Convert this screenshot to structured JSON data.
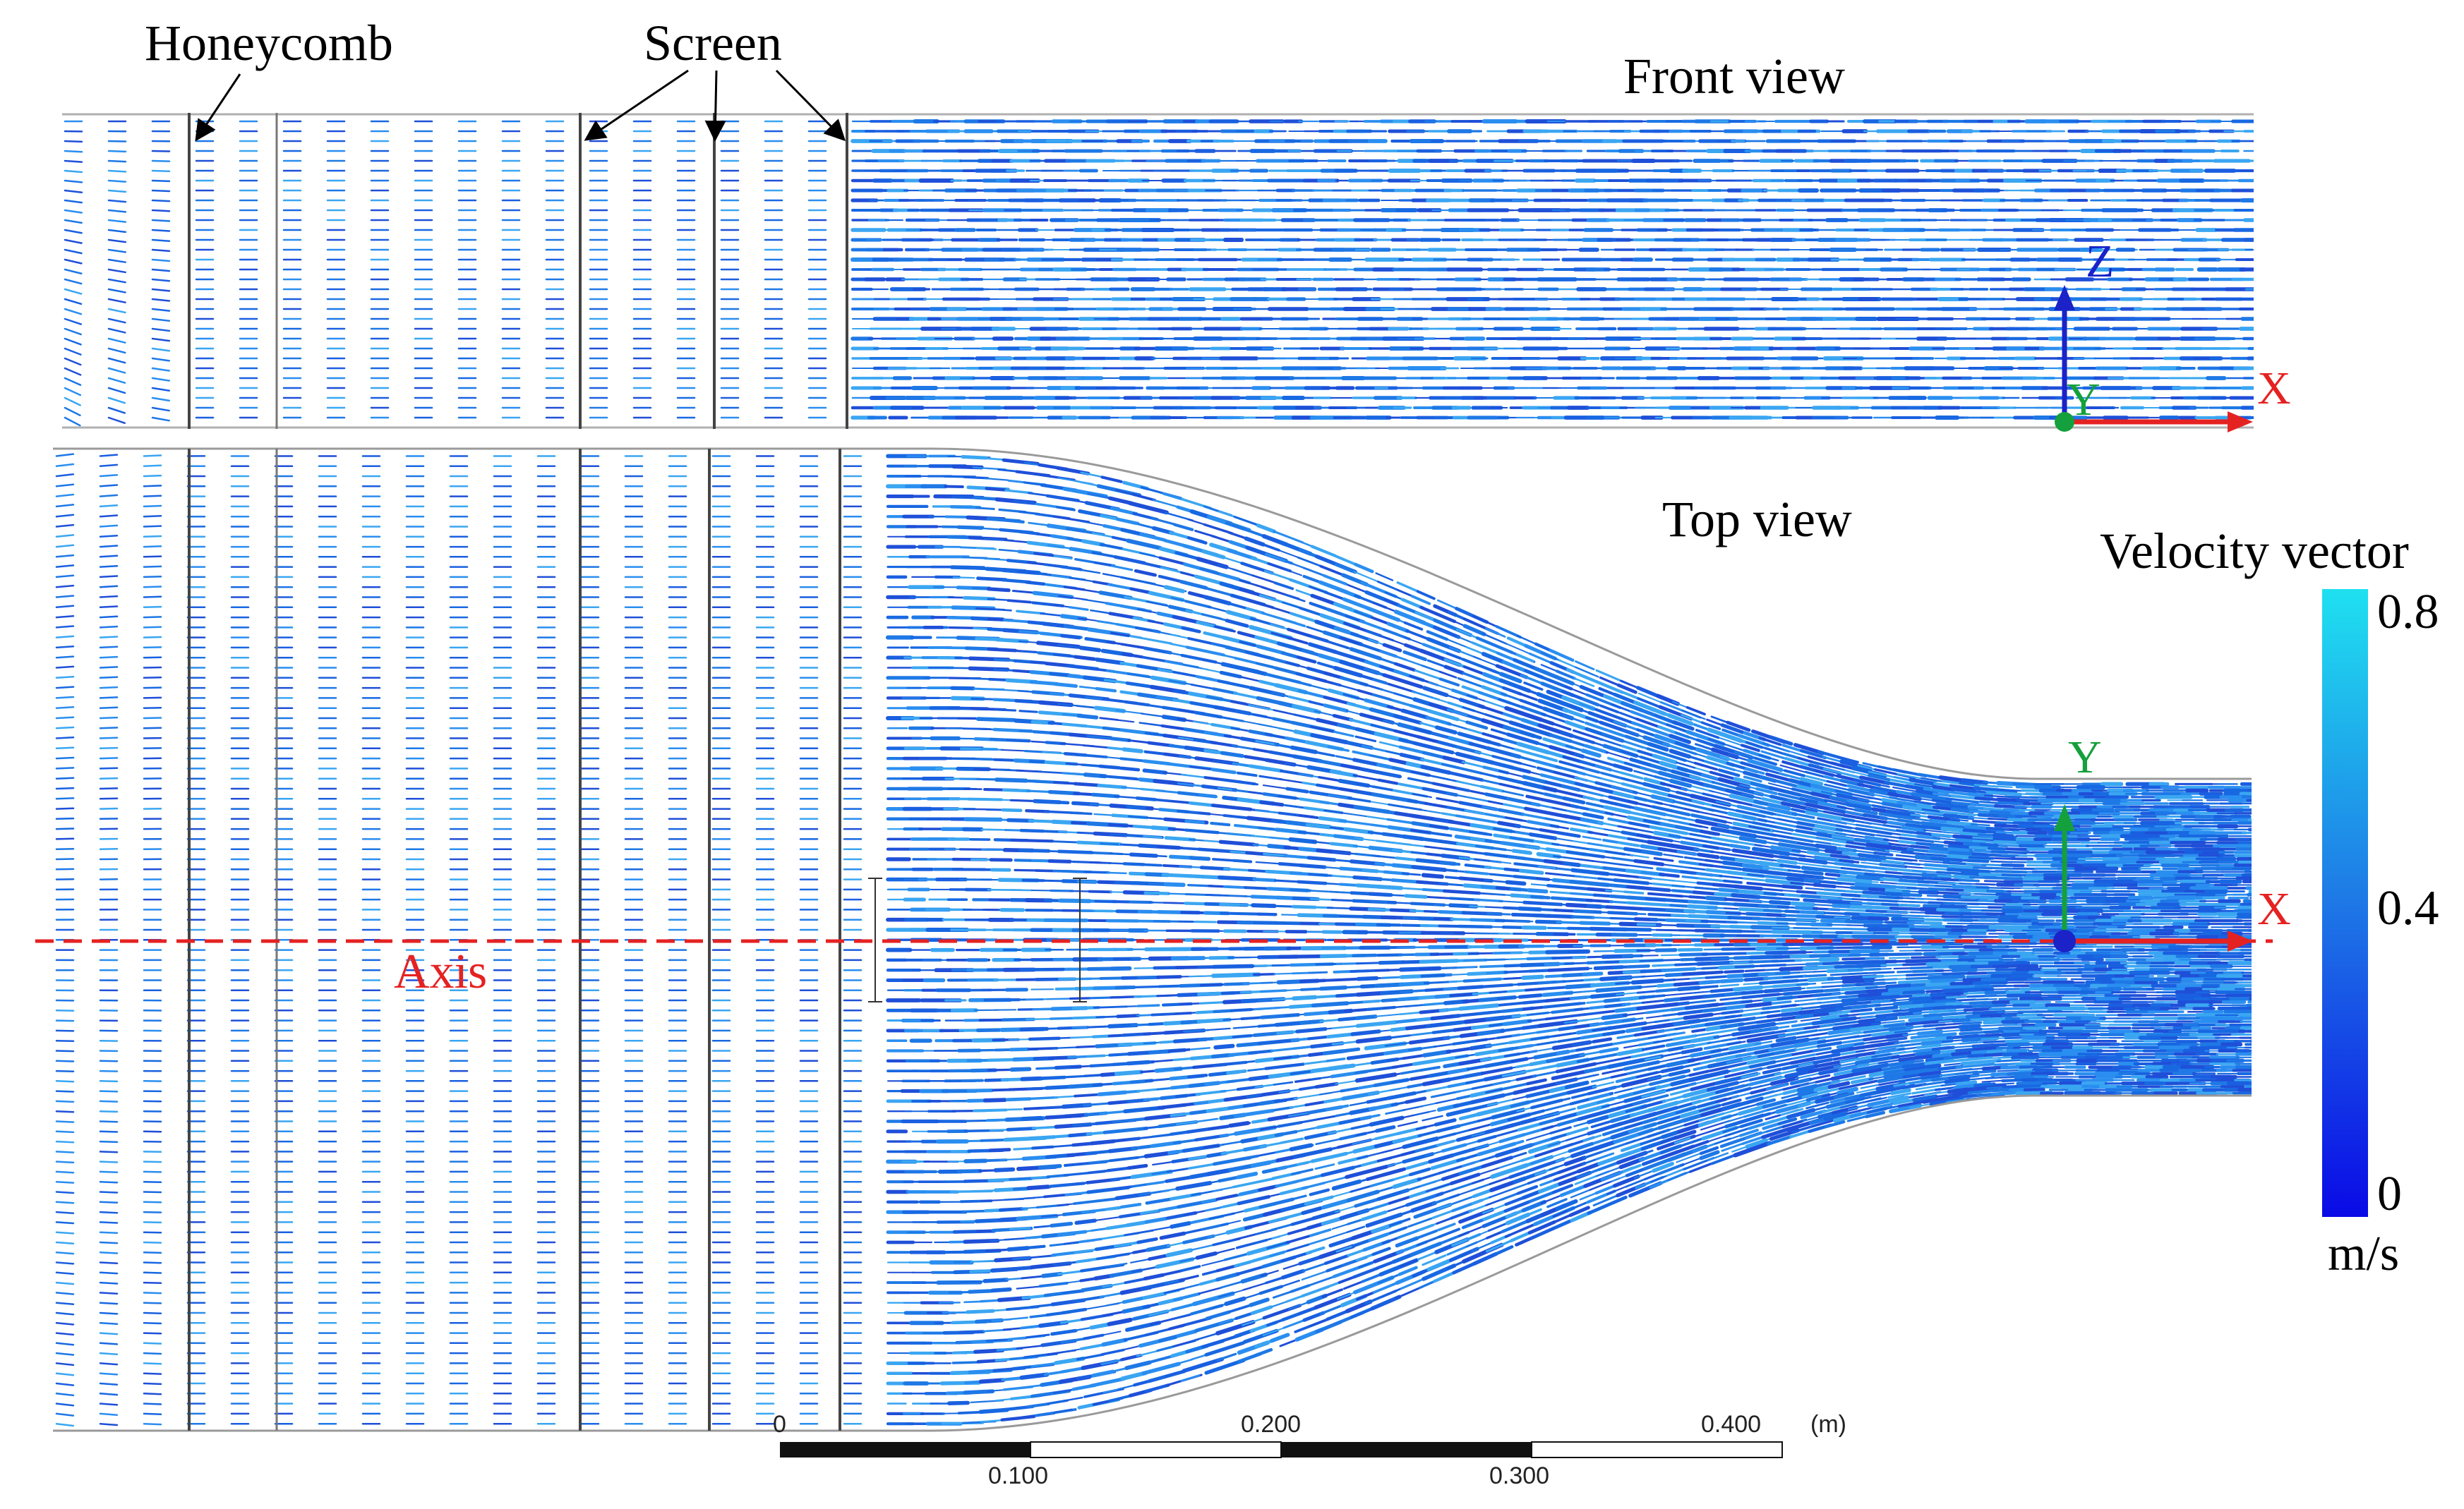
{
  "labels": {
    "honeycomb": "Honeycomb",
    "screen": "Screen",
    "front_view": "Front view",
    "top_view": "Top view",
    "axis": "Axis",
    "legend_title": "Velocity vector",
    "legend_unit": "m/s"
  },
  "front_axes": {
    "z": "Z",
    "y": "Y",
    "x": "X"
  },
  "top_axes": {
    "y": "Y",
    "x": "X"
  },
  "colorbar": {
    "ticks": [
      "0.8",
      "0.4",
      "0"
    ],
    "color_top": "#1fe0f0",
    "color_mid": "#1e78e6",
    "color_bottom": "#0a0ae6"
  },
  "scale_bar": {
    "top_labels": [
      "0",
      "0.200",
      "0.400"
    ],
    "unit": "(m)",
    "bottom_labels": [
      "0.100",
      "0.300"
    ]
  },
  "colors": {
    "vector": "#1e6fe0",
    "axis_line": "#e52222",
    "axis_x": "#e52222",
    "axis_y": "#14a03c",
    "axis_z": "#1a22c8"
  }
}
